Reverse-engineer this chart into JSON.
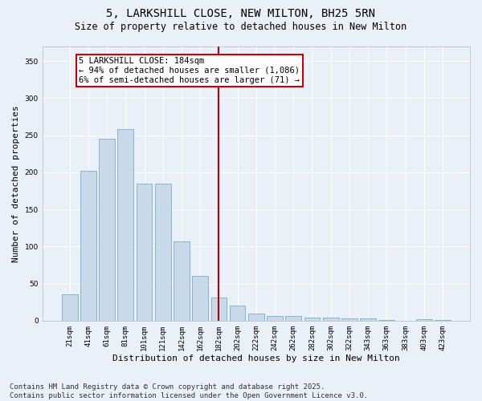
{
  "title": "5, LARKSHILL CLOSE, NEW MILTON, BH25 5RN",
  "subtitle": "Size of property relative to detached houses in New Milton",
  "xlabel": "Distribution of detached houses by size in New Milton",
  "ylabel": "Number of detached properties",
  "bar_color": "#c8daea",
  "bar_edge_color": "#7aabca",
  "background_color": "#eaf0f8",
  "grid_color": "#ffffff",
  "categories": [
    "21sqm",
    "41sqm",
    "61sqm",
    "81sqm",
    "101sqm",
    "121sqm",
    "142sqm",
    "162sqm",
    "182sqm",
    "202sqm",
    "222sqm",
    "242sqm",
    "262sqm",
    "282sqm",
    "302sqm",
    "322sqm",
    "343sqm",
    "363sqm",
    "383sqm",
    "403sqm",
    "423sqm"
  ],
  "values": [
    35,
    202,
    245,
    258,
    185,
    185,
    107,
    60,
    31,
    20,
    10,
    6,
    6,
    4,
    4,
    3,
    3,
    1,
    0,
    2,
    1
  ],
  "ylim": [
    0,
    370
  ],
  "yticks": [
    0,
    50,
    100,
    150,
    200,
    250,
    300,
    350
  ],
  "vline_index": 8,
  "vline_color": "#bb0000",
  "annotation_text": "5 LARKSHILL CLOSE: 184sqm\n← 94% of detached houses are smaller (1,086)\n6% of semi-detached houses are larger (71) →",
  "annotation_box_edgecolor": "#cc0000",
  "footer_text": "Contains HM Land Registry data © Crown copyright and database right 2025.\nContains public sector information licensed under the Open Government Licence v3.0.",
  "title_fontsize": 10,
  "subtitle_fontsize": 8.5,
  "tick_fontsize": 6.5,
  "ylabel_fontsize": 8,
  "xlabel_fontsize": 8,
  "annotation_fontsize": 7.5,
  "footer_fontsize": 6.5
}
